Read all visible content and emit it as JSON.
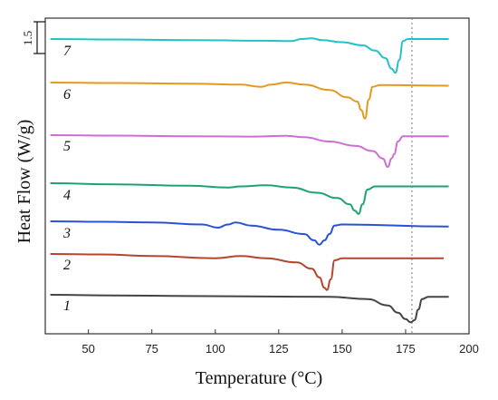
{
  "chart_data": {
    "type": "line",
    "title": "",
    "xlabel": "Temperature (°C)",
    "ylabel": "Heat Flow (W/g)",
    "xlim": [
      33,
      200
    ],
    "xticks": [
      50,
      75,
      100,
      125,
      150,
      175,
      200
    ],
    "reference_line_x": 177.5,
    "scale_bar": {
      "label": "1.5",
      "value": 1.5
    },
    "series": [
      {
        "name": "7",
        "color": "#22c3c6",
        "points": [
          [
            35,
            0
          ],
          [
            60,
            -0.02
          ],
          [
            90,
            -0.05
          ],
          [
            120,
            -0.08
          ],
          [
            130,
            -0.1
          ],
          [
            134,
            0
          ],
          [
            138,
            0.03
          ],
          [
            142,
            -0.05
          ],
          [
            150,
            -0.15
          ],
          [
            158,
            -0.3
          ],
          [
            163,
            -0.55
          ],
          [
            167,
            -0.9
          ],
          [
            169.5,
            -1.4
          ],
          [
            171,
            -1.6
          ],
          [
            172.5,
            -1.0
          ],
          [
            174,
            -0.1
          ],
          [
            176,
            0
          ],
          [
            192,
            0
          ]
        ]
      },
      {
        "name": "6",
        "color": "#e39a1e",
        "points": [
          [
            35,
            0
          ],
          [
            60,
            -0.02
          ],
          [
            90,
            -0.05
          ],
          [
            110,
            -0.1
          ],
          [
            118,
            -0.2
          ],
          [
            122,
            -0.1
          ],
          [
            128,
            0.0
          ],
          [
            135,
            -0.1
          ],
          [
            145,
            -0.35
          ],
          [
            152,
            -0.7
          ],
          [
            156,
            -0.9
          ],
          [
            157.5,
            -1.3
          ],
          [
            159,
            -1.7
          ],
          [
            160.5,
            -0.8
          ],
          [
            162,
            -0.2
          ],
          [
            165,
            -0.12
          ],
          [
            192,
            -0.15
          ]
        ]
      },
      {
        "name": "5",
        "color": "#cc6ed6",
        "points": [
          [
            35,
            0
          ],
          [
            60,
            -0.02
          ],
          [
            90,
            -0.05
          ],
          [
            115,
            -0.07
          ],
          [
            128,
            -0.03
          ],
          [
            135,
            -0.1
          ],
          [
            145,
            -0.3
          ],
          [
            155,
            -0.5
          ],
          [
            162,
            -0.75
          ],
          [
            166,
            -1.1
          ],
          [
            168,
            -1.5
          ],
          [
            169.5,
            -1.1
          ],
          [
            170.5,
            -0.9
          ],
          [
            172,
            -0.3
          ],
          [
            174,
            -0.05
          ],
          [
            192,
            -0.05
          ]
        ]
      },
      {
        "name": "4",
        "color": "#1fa36e",
        "points": [
          [
            35,
            0
          ],
          [
            60,
            -0.05
          ],
          [
            90,
            -0.12
          ],
          [
            105,
            -0.2
          ],
          [
            110,
            -0.15
          ],
          [
            120,
            -0.1
          ],
          [
            130,
            -0.2
          ],
          [
            140,
            -0.45
          ],
          [
            148,
            -0.7
          ],
          [
            153,
            -1.0
          ],
          [
            155,
            -1.3
          ],
          [
            156.5,
            -1.45
          ],
          [
            158,
            -1.0
          ],
          [
            160,
            -0.3
          ],
          [
            163,
            -0.15
          ],
          [
            192,
            -0.15
          ]
        ]
      },
      {
        "name": "3",
        "color": "#2a52d6",
        "points": [
          [
            35,
            0
          ],
          [
            55,
            -0.02
          ],
          [
            75,
            -0.05
          ],
          [
            95,
            -0.15
          ],
          [
            101,
            -0.3
          ],
          [
            105,
            -0.15
          ],
          [
            108,
            -0.05
          ],
          [
            114,
            -0.2
          ],
          [
            125,
            -0.4
          ],
          [
            135,
            -0.6
          ],
          [
            139,
            -0.9
          ],
          [
            141,
            -1.1
          ],
          [
            143,
            -0.9
          ],
          [
            145,
            -0.6
          ],
          [
            147,
            -0.2
          ],
          [
            150,
            -0.15
          ],
          [
            192,
            -0.25
          ]
        ]
      },
      {
        "name": "2",
        "color": "#b5452e",
        "points": [
          [
            35,
            0
          ],
          [
            55,
            -0.02
          ],
          [
            75,
            -0.1
          ],
          [
            100,
            -0.2
          ],
          [
            110,
            -0.1
          ],
          [
            120,
            -0.2
          ],
          [
            132,
            -0.4
          ],
          [
            138,
            -0.7
          ],
          [
            141,
            -1.1
          ],
          [
            143,
            -1.6
          ],
          [
            144,
            -1.7
          ],
          [
            145.5,
            -1.2
          ],
          [
            147,
            -0.3
          ],
          [
            150,
            -0.2
          ],
          [
            190,
            -0.2
          ]
        ]
      },
      {
        "name": "1",
        "color": "#444444",
        "points": [
          [
            35,
            0
          ],
          [
            60,
            -0.03
          ],
          [
            90,
            -0.06
          ],
          [
            120,
            -0.08
          ],
          [
            145,
            -0.1
          ],
          [
            160,
            -0.2
          ],
          [
            168,
            -0.5
          ],
          [
            172,
            -0.85
          ],
          [
            175,
            -1.15
          ],
          [
            177,
            -1.3
          ],
          [
            178.5,
            -1.2
          ],
          [
            180,
            -0.7
          ],
          [
            181.5,
            -0.2
          ],
          [
            184,
            -0.1
          ],
          [
            192,
            -0.1
          ]
        ]
      }
    ]
  }
}
